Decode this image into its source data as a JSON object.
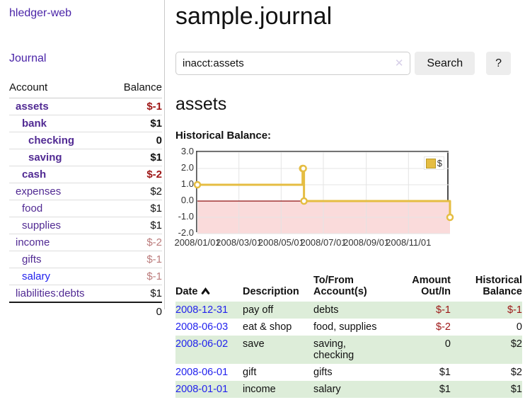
{
  "app": {
    "title": "hledger-web"
  },
  "sidebar": {
    "journal_link": "Journal",
    "account_header": "Account",
    "balance_header": "Balance",
    "accounts": [
      {
        "account": "assets",
        "balance": "$-1",
        "depth": 1,
        "bold": true,
        "color": "purple",
        "balance_style": "neg-strong"
      },
      {
        "account": "bank",
        "balance": "$1",
        "depth": 2,
        "bold": true,
        "color": "purple",
        "balance_style": "normal"
      },
      {
        "account": "checking",
        "balance": "0",
        "depth": 3,
        "bold": true,
        "color": "purple",
        "balance_style": "normal"
      },
      {
        "account": "saving",
        "balance": "$1",
        "depth": 3,
        "bold": true,
        "color": "purple",
        "balance_style": "normal"
      },
      {
        "account": "cash",
        "balance": "$-2",
        "depth": 2,
        "bold": true,
        "color": "purple",
        "balance_style": "neg-strong"
      },
      {
        "account": "expenses",
        "balance": "$2",
        "depth": 1,
        "bold": false,
        "color": "purple",
        "balance_style": "normal"
      },
      {
        "account": "food",
        "balance": "$1",
        "depth": 2,
        "bold": false,
        "color": "purple",
        "balance_style": "normal"
      },
      {
        "account": "supplies",
        "balance": "$1",
        "depth": 2,
        "bold": false,
        "color": "purple",
        "balance_style": "normal"
      },
      {
        "account": "income",
        "balance": "$-2",
        "depth": 1,
        "bold": false,
        "color": "purple",
        "balance_style": "neg-muted"
      },
      {
        "account": "gifts",
        "balance": "$-1",
        "depth": 2,
        "bold": false,
        "color": "purple",
        "balance_style": "neg-muted"
      },
      {
        "account": "salary",
        "balance": "$-1",
        "depth": 2,
        "bold": false,
        "color": "blue",
        "balance_style": "neg-muted"
      },
      {
        "account": "liabilities:debts",
        "balance": "$1",
        "depth": 1,
        "bold": false,
        "color": "purple",
        "balance_style": "normal"
      }
    ],
    "total": "0"
  },
  "main": {
    "title": "sample.journal",
    "search": {
      "value": "inacct:assets",
      "button": "Search",
      "help_button": "?"
    },
    "account_heading": "assets",
    "chart_label": "Historical Balance:"
  },
  "icons": {
    "clear_search": "✕",
    "sort_date": "chevron-up-icon",
    "legend_swatch": "yellow-square"
  },
  "chart_data": {
    "type": "line",
    "style": "step",
    "title": "Historical Balance:",
    "series": [
      {
        "name": "$",
        "points": [
          [
            "2008-01-01",
            1
          ],
          [
            "2008-06-01",
            2
          ],
          [
            "2008-06-02",
            2
          ],
          [
            "2008-06-03",
            0
          ],
          [
            "2008-12-31",
            -1
          ]
        ]
      }
    ],
    "xlim": [
      "2008-01-01",
      "2008-12-31"
    ],
    "ylim": [
      -2,
      3
    ],
    "x_ticks": [
      {
        "date": "2008-01-01",
        "label": "2008/01/01"
      },
      {
        "date": "2008-03-01",
        "label": "2008/03/01"
      },
      {
        "date": "2008-05-01",
        "label": "2008/05/01"
      },
      {
        "date": "2008-07-01",
        "label": "2008/07/01"
      },
      {
        "date": "2008-09-01",
        "label": "2008/09/01"
      },
      {
        "date": "2008-11-01",
        "label": "2008/11/01"
      }
    ],
    "y_ticks": [
      {
        "v": 3,
        "label": "3.0"
      },
      {
        "v": 2,
        "label": "2.0"
      },
      {
        "v": 1,
        "label": "1.0"
      },
      {
        "v": 0,
        "label": "0.0"
      },
      {
        "v": -1,
        "label": "-1.0"
      },
      {
        "v": -2,
        "label": "-2.0"
      }
    ],
    "grid": true,
    "legend": {
      "label": "$",
      "position": "top-right"
    },
    "colors": {
      "line": "#e5bd42",
      "marker_fill": "#ffffff",
      "negative_region": "#fadbdb",
      "zero_line": "#8f1010",
      "grid": "#e4e4e4",
      "border": "#4d4d4d"
    }
  },
  "register": {
    "headers": [
      "Date",
      "Description",
      "To/From Account(s)",
      "Amount Out/In",
      "Historical Balance"
    ],
    "rows": [
      {
        "date": "2008-12-31",
        "description": "pay off",
        "accounts": "debts",
        "amount": "$-1",
        "amount_neg": true,
        "balance": "$-1",
        "balance_neg": true,
        "shaded": true
      },
      {
        "date": "2008-06-03",
        "description": "eat & shop",
        "accounts": "food, supplies",
        "amount": "$-2",
        "amount_neg": true,
        "balance": "0",
        "balance_neg": false,
        "shaded": false
      },
      {
        "date": "2008-06-02",
        "description": "save",
        "accounts": "saving, checking",
        "amount": "0",
        "amount_neg": false,
        "balance": "$2",
        "balance_neg": false,
        "shaded": true
      },
      {
        "date": "2008-06-01",
        "description": "gift",
        "accounts": "gifts",
        "amount": "$1",
        "amount_neg": false,
        "balance": "$2",
        "balance_neg": false,
        "shaded": false
      },
      {
        "date": "2008-01-01",
        "description": "income",
        "accounts": "salary",
        "amount": "$1",
        "amount_neg": false,
        "balance": "$1",
        "balance_neg": false,
        "shaded": true
      }
    ]
  }
}
